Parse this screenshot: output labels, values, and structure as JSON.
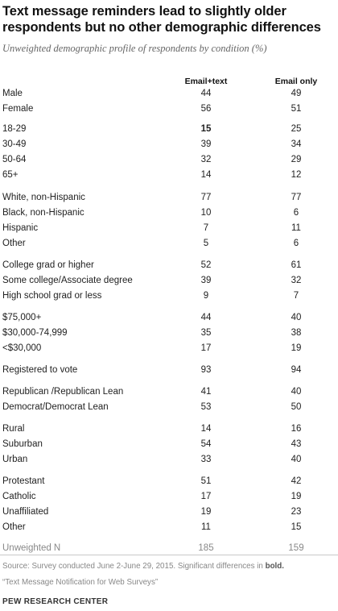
{
  "header": {
    "title": "Text message reminders lead to slightly older respondents but no other demographic differences",
    "subtitle": "Unweighted demographic profile of respondents by condition (%)"
  },
  "columns": {
    "c1": "Email+text",
    "c2": "Email only"
  },
  "rows": [
    {
      "label": "Male",
      "v1": "44",
      "v2": "49"
    },
    {
      "label": "Female",
      "v1": "56",
      "v2": "51"
    },
    {
      "label": "18-29",
      "v1": "15",
      "v2": "25",
      "bold1": true
    },
    {
      "label": "30-49",
      "v1": "39",
      "v2": "34"
    },
    {
      "label": "50-64",
      "v1": "32",
      "v2": "29"
    },
    {
      "label": "65+",
      "v1": "14",
      "v2": "12"
    },
    {
      "label": "White, non-Hispanic",
      "v1": "77",
      "v2": "77"
    },
    {
      "label": "Black, non-Hispanic",
      "v1": "10",
      "v2": "6"
    },
    {
      "label": "Hispanic",
      "v1": "7",
      "v2": "11"
    },
    {
      "label": "Other",
      "v1": "5",
      "v2": "6"
    },
    {
      "label": "College grad or higher",
      "v1": "52",
      "v2": "61"
    },
    {
      "label": "Some college/Associate degree",
      "v1": "39",
      "v2": "32"
    },
    {
      "label": "High school grad or less",
      "v1": "9",
      "v2": "7"
    },
    {
      "label": "$75,000+",
      "v1": "44",
      "v2": "40"
    },
    {
      "label": "$30,000-74,999",
      "v1": "35",
      "v2": "38"
    },
    {
      "label": "<$30,000",
      "v1": "17",
      "v2": "19"
    },
    {
      "label": "Registered to vote",
      "v1": "93",
      "v2": "94"
    },
    {
      "label": "Republican /Republican Lean",
      "v1": "41",
      "v2": "40"
    },
    {
      "label": "Democrat/Democrat Lean",
      "v1": "53",
      "v2": "50"
    },
    {
      "label": "Rural",
      "v1": "14",
      "v2": "16"
    },
    {
      "label": "Suburban",
      "v1": "54",
      "v2": "43"
    },
    {
      "label": "Urban",
      "v1": "33",
      "v2": "40"
    },
    {
      "label": "Protestant",
      "v1": "51",
      "v2": "42"
    },
    {
      "label": "Catholic",
      "v1": "17",
      "v2": "19"
    },
    {
      "label": "Unaffiliated",
      "v1": "19",
      "v2": "23"
    },
    {
      "label": "Other",
      "v1": "11",
      "v2": "15"
    },
    {
      "label": "Unweighted N",
      "v1": "185",
      "v2": "159",
      "gray": true
    }
  ],
  "footer": {
    "source_prefix": "Source: Survey conducted June 2-June 29, 2015. Significant differences in ",
    "source_bold": "bold.",
    "report": "“Text Message Notification for Web Surveys”",
    "brand": "PEW RESEARCH CENTER"
  },
  "chart_data": {
    "type": "table",
    "title": "Text message reminders lead to slightly older respondents but no other demographic differences",
    "subtitle": "Unweighted demographic profile of respondents by condition (%)",
    "columns": [
      "Email+text",
      "Email only"
    ],
    "categories": [
      "Male",
      "Female",
      "18-29",
      "30-49",
      "50-64",
      "65+",
      "White, non-Hispanic",
      "Black, non-Hispanic",
      "Hispanic",
      "Other",
      "College grad or higher",
      "Some college/Associate degree",
      "High school grad or less",
      "$75,000+",
      "$30,000-74,999",
      "<$30,000",
      "Registered to vote",
      "Republican /Republican Lean",
      "Democrat/Democrat Lean",
      "Rural",
      "Suburban",
      "Urban",
      "Protestant",
      "Catholic",
      "Unaffiliated",
      "Other",
      "Unweighted N"
    ],
    "series": [
      {
        "name": "Email+text",
        "values": [
          44,
          56,
          15,
          39,
          32,
          14,
          77,
          10,
          7,
          5,
          52,
          39,
          9,
          44,
          35,
          17,
          93,
          41,
          53,
          14,
          54,
          33,
          51,
          17,
          19,
          11,
          185
        ]
      },
      {
        "name": "Email only",
        "values": [
          49,
          51,
          25,
          34,
          29,
          12,
          77,
          6,
          11,
          6,
          61,
          32,
          7,
          40,
          38,
          19,
          94,
          40,
          50,
          16,
          43,
          40,
          42,
          19,
          23,
          15,
          159
        ]
      }
    ],
    "significant": [
      {
        "row": "18-29",
        "column": "Email+text"
      }
    ]
  }
}
